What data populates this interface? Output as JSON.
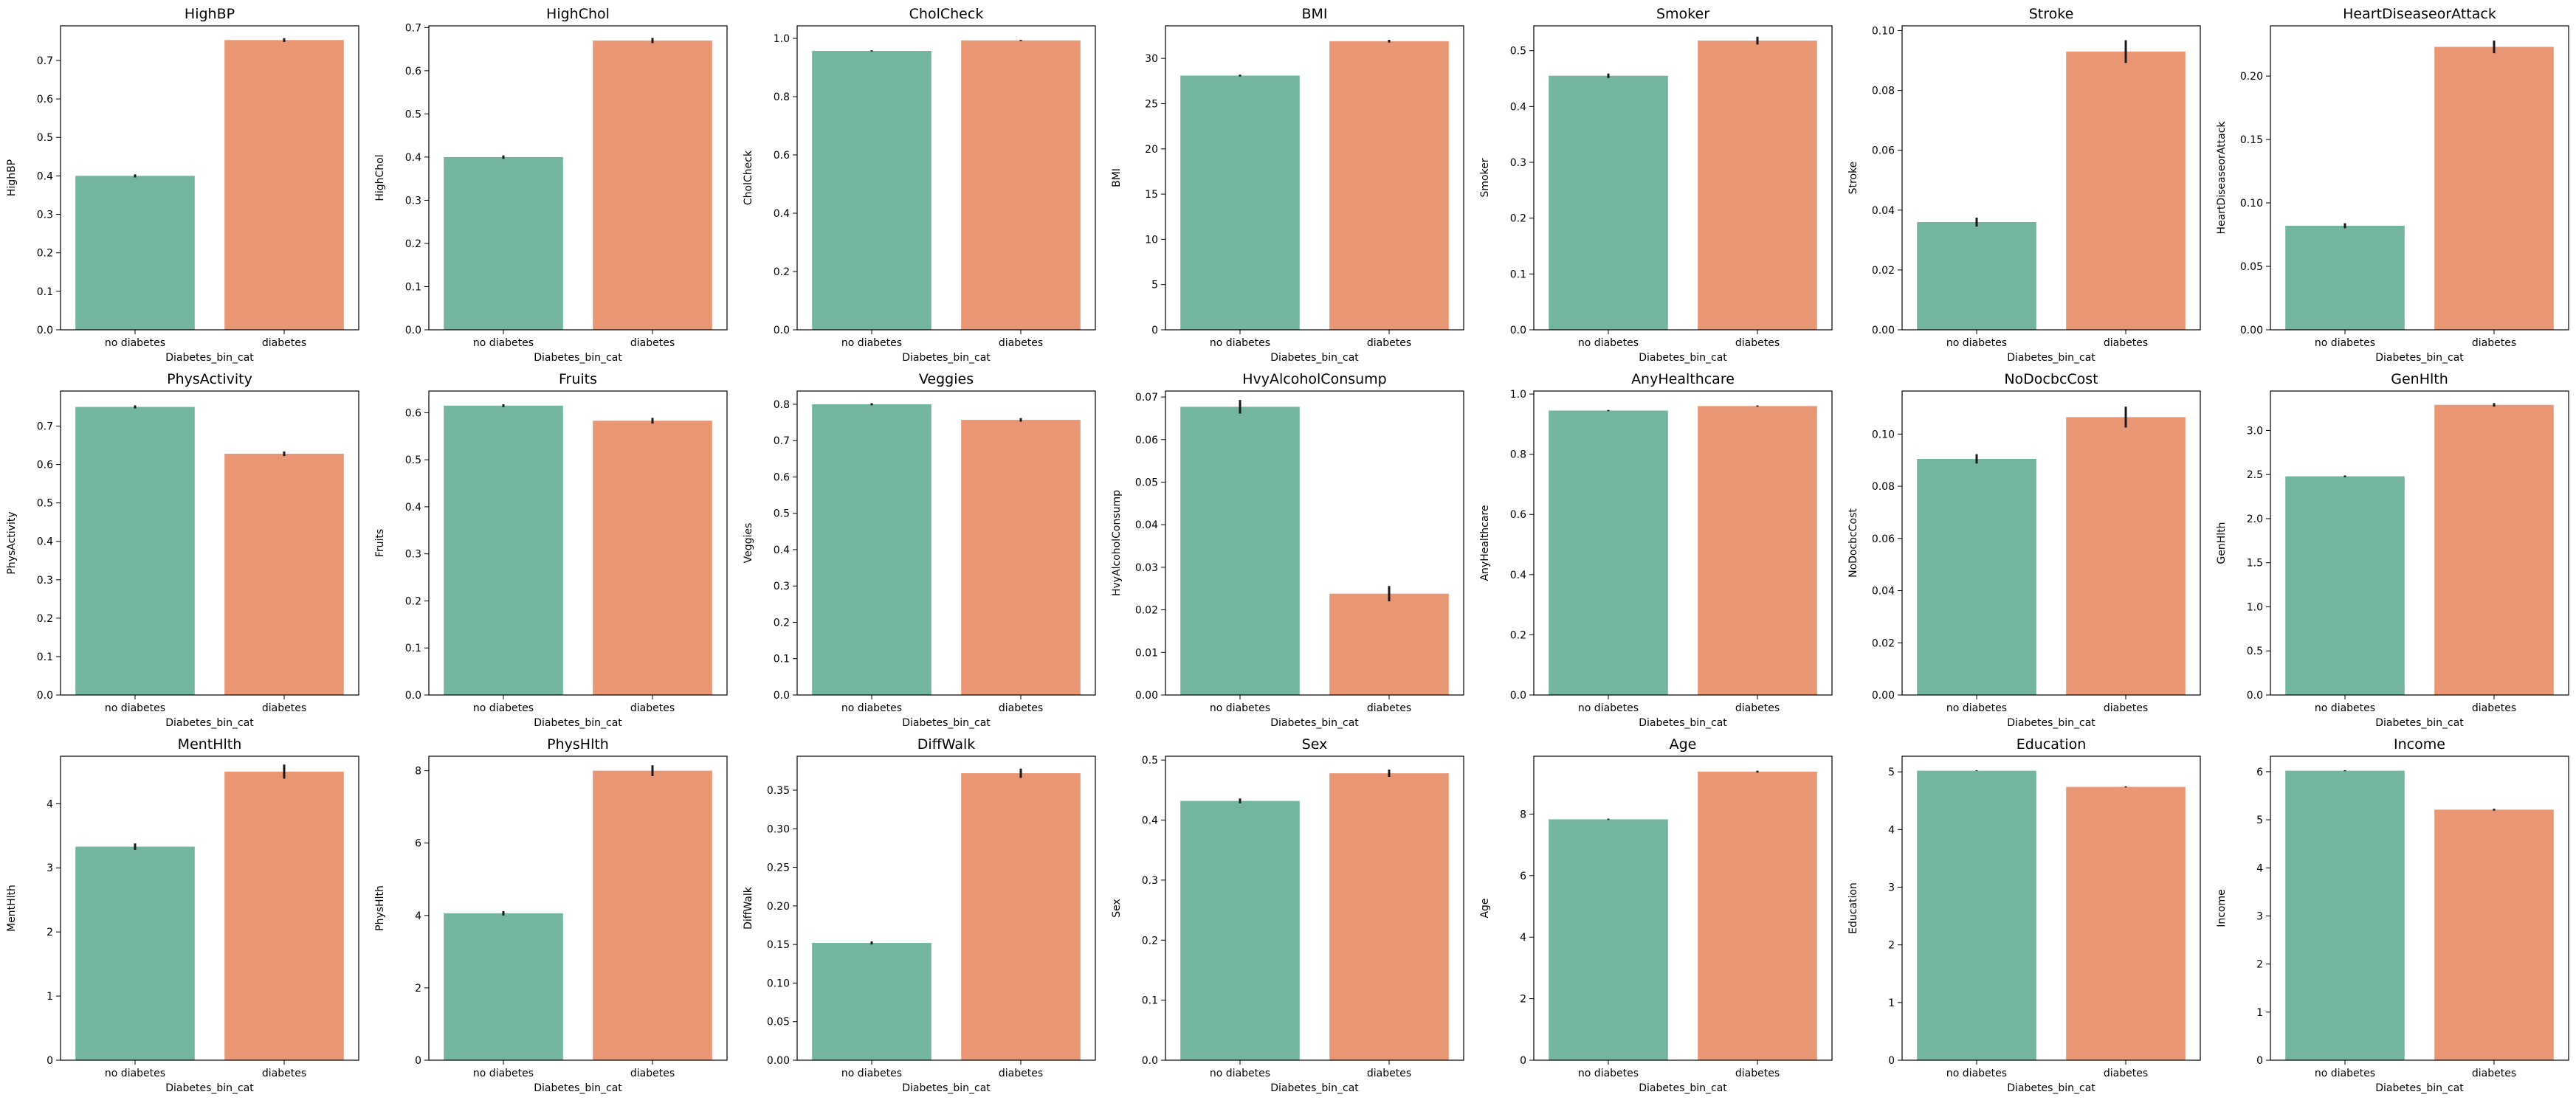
{
  "colors": {
    "no_diabetes": "#73b59f",
    "diabetes": "#e89673"
  },
  "chart_data": [
    {
      "type": "bar",
      "title": "HighBP",
      "xlabel": "Diabetes_bin_cat",
      "ylabel": "HighBP",
      "categories": [
        "no diabetes",
        "diabetes"
      ],
      "values": [
        0.4,
        0.753
      ],
      "errors": [
        0.004,
        0.005
      ],
      "ylim": [
        0,
        0.79
      ],
      "yticks": [
        0.0,
        0.1,
        0.2,
        0.3,
        0.4,
        0.5,
        0.6,
        0.7
      ],
      "ytick_labels": [
        "0.0",
        "0.1",
        "0.2",
        "0.3",
        "0.4",
        "0.5",
        "0.6",
        "0.7"
      ]
    },
    {
      "type": "bar",
      "title": "HighChol",
      "xlabel": "Diabetes_bin_cat",
      "ylabel": "HighChol",
      "categories": [
        "no diabetes",
        "diabetes"
      ],
      "values": [
        0.4,
        0.67
      ],
      "errors": [
        0.004,
        0.006
      ],
      "ylim": [
        0,
        0.704
      ],
      "yticks": [
        0.0,
        0.1,
        0.2,
        0.3,
        0.4,
        0.5,
        0.6,
        0.7
      ],
      "ytick_labels": [
        "0.0",
        "0.1",
        "0.2",
        "0.3",
        "0.4",
        "0.5",
        "0.6",
        "0.7"
      ]
    },
    {
      "type": "bar",
      "title": "CholCheck",
      "xlabel": "Diabetes_bin_cat",
      "ylabel": "CholCheck",
      "categories": [
        "no diabetes",
        "diabetes"
      ],
      "values": [
        0.957,
        0.993
      ],
      "errors": [
        0.002,
        0.002
      ],
      "ylim": [
        0,
        1.043
      ],
      "yticks": [
        0.0,
        0.2,
        0.4,
        0.6,
        0.8,
        1.0
      ],
      "ytick_labels": [
        "0.0",
        "0.2",
        "0.4",
        "0.6",
        "0.8",
        "1.0"
      ]
    },
    {
      "type": "bar",
      "title": "BMI",
      "xlabel": "Diabetes_bin_cat",
      "ylabel": "BMI",
      "categories": [
        "no diabetes",
        "diabetes"
      ],
      "values": [
        28.1,
        31.9
      ],
      "errors": [
        0.1,
        0.15
      ],
      "ylim": [
        0,
        33.6
      ],
      "yticks": [
        0,
        5,
        10,
        15,
        20,
        25,
        30
      ],
      "ytick_labels": [
        "0",
        "5",
        "10",
        "15",
        "20",
        "25",
        "30"
      ]
    },
    {
      "type": "bar",
      "title": "Smoker",
      "xlabel": "Diabetes_bin_cat",
      "ylabel": "Smoker",
      "categories": [
        "no diabetes",
        "diabetes"
      ],
      "values": [
        0.455,
        0.518
      ],
      "errors": [
        0.004,
        0.007
      ],
      "ylim": [
        0,
        0.5445
      ],
      "yticks": [
        0.0,
        0.1,
        0.2,
        0.3,
        0.4,
        0.5
      ],
      "ytick_labels": [
        "0.0",
        "0.1",
        "0.2",
        "0.3",
        "0.4",
        "0.5"
      ]
    },
    {
      "type": "bar",
      "title": "Stroke",
      "xlabel": "Diabetes_bin_cat",
      "ylabel": "Stroke",
      "categories": [
        "no diabetes",
        "diabetes"
      ],
      "values": [
        0.036,
        0.093
      ],
      "errors": [
        0.0015,
        0.0038
      ],
      "ylim": [
        0,
        0.1016
      ],
      "yticks": [
        0.0,
        0.02,
        0.04,
        0.06,
        0.08,
        0.1
      ],
      "ytick_labels": [
        "0.00",
        "0.02",
        "0.04",
        "0.06",
        "0.08",
        "0.10"
      ]
    },
    {
      "type": "bar",
      "title": "HeartDiseaseorAttack",
      "xlabel": "Diabetes_bin_cat",
      "ylabel": "HeartDiseaseorAttack",
      "categories": [
        "no diabetes",
        "diabetes"
      ],
      "values": [
        0.082,
        0.223
      ],
      "errors": [
        0.002,
        0.005
      ],
      "ylim": [
        0,
        0.2396
      ],
      "yticks": [
        0.0,
        0.05,
        0.1,
        0.15,
        0.2
      ],
      "ytick_labels": [
        "0.00",
        "0.05",
        "0.10",
        "0.15",
        "0.20"
      ]
    },
    {
      "type": "bar",
      "title": "PhysActivity",
      "xlabel": "Diabetes_bin_cat",
      "ylabel": "PhysActivity",
      "categories": [
        "no diabetes",
        "diabetes"
      ],
      "values": [
        0.75,
        0.628
      ],
      "errors": [
        0.004,
        0.006
      ],
      "ylim": [
        0,
        0.7913
      ],
      "yticks": [
        0.0,
        0.1,
        0.2,
        0.3,
        0.4,
        0.5,
        0.6,
        0.7
      ],
      "ytick_labels": [
        "0.0",
        "0.1",
        "0.2",
        "0.3",
        "0.4",
        "0.5",
        "0.6",
        "0.7"
      ]
    },
    {
      "type": "bar",
      "title": "Fruits",
      "xlabel": "Diabetes_bin_cat",
      "ylabel": "Fruits",
      "categories": [
        "no diabetes",
        "diabetes"
      ],
      "values": [
        0.615,
        0.583
      ],
      "errors": [
        0.003,
        0.006
      ],
      "ylim": [
        0,
        0.6461
      ],
      "yticks": [
        0.0,
        0.1,
        0.2,
        0.3,
        0.4,
        0.5,
        0.6
      ],
      "ytick_labels": [
        "0.0",
        "0.1",
        "0.2",
        "0.3",
        "0.4",
        "0.5",
        "0.6"
      ]
    },
    {
      "type": "bar",
      "title": "Veggies",
      "xlabel": "Diabetes_bin_cat",
      "ylabel": "Veggies",
      "categories": [
        "no diabetes",
        "diabetes"
      ],
      "values": [
        0.8,
        0.757
      ],
      "errors": [
        0.003,
        0.005
      ],
      "ylim": [
        0,
        0.8364
      ],
      "yticks": [
        0.0,
        0.1,
        0.2,
        0.3,
        0.4,
        0.5,
        0.6,
        0.7,
        0.8
      ],
      "ytick_labels": [
        "0.0",
        "0.1",
        "0.2",
        "0.3",
        "0.4",
        "0.5",
        "0.6",
        "0.7",
        "0.8"
      ]
    },
    {
      "type": "bar",
      "title": "HvyAlcoholConsump",
      "xlabel": "Diabetes_bin_cat",
      "ylabel": "HvyAlcoholConsump",
      "categories": [
        "no diabetes",
        "diabetes"
      ],
      "values": [
        0.0677,
        0.0238
      ],
      "errors": [
        0.0016,
        0.0018
      ],
      "ylim": [
        0,
        0.0714
      ],
      "yticks": [
        0.0,
        0.01,
        0.02,
        0.03,
        0.04,
        0.05,
        0.06,
        0.07
      ],
      "ytick_labels": [
        "0.00",
        "0.01",
        "0.02",
        "0.03",
        "0.04",
        "0.05",
        "0.06",
        "0.07"
      ]
    },
    {
      "type": "bar",
      "title": "AnyHealthcare",
      "xlabel": "Diabetes_bin_cat",
      "ylabel": "AnyHealthcare",
      "categories": [
        "no diabetes",
        "diabetes"
      ],
      "values": [
        0.945,
        0.96
      ],
      "errors": [
        0.002,
        0.002
      ],
      "ylim": [
        0,
        1.01
      ],
      "yticks": [
        0.0,
        0.2,
        0.4,
        0.6,
        0.8,
        1.0
      ],
      "ytick_labels": [
        "0.0",
        "0.2",
        "0.4",
        "0.6",
        "0.8",
        "1.0"
      ]
    },
    {
      "type": "bar",
      "title": "NoDocbcCost",
      "xlabel": "Diabetes_bin_cat",
      "ylabel": "NoDocbcCost",
      "categories": [
        "no diabetes",
        "diabetes"
      ],
      "values": [
        0.0905,
        0.1065
      ],
      "errors": [
        0.0018,
        0.004
      ],
      "ylim": [
        0,
        0.1165
      ],
      "yticks": [
        0.0,
        0.02,
        0.04,
        0.06,
        0.08,
        0.1
      ],
      "ytick_labels": [
        "0.00",
        "0.02",
        "0.04",
        "0.06",
        "0.08",
        "0.10"
      ]
    },
    {
      "type": "bar",
      "title": "GenHlth",
      "xlabel": "Diabetes_bin_cat",
      "ylabel": "GenHlth",
      "categories": [
        "no diabetes",
        "diabetes"
      ],
      "values": [
        2.48,
        3.29
      ],
      "errors": [
        0.01,
        0.02
      ],
      "ylim": [
        0,
        3.447
      ],
      "yticks": [
        0.0,
        0.5,
        1.0,
        1.5,
        2.0,
        2.5,
        3.0
      ],
      "ytick_labels": [
        "0.0",
        "0.5",
        "1.0",
        "1.5",
        "2.0",
        "2.5",
        "3.0"
      ]
    },
    {
      "type": "bar",
      "title": "MentHlth",
      "xlabel": "Diabetes_bin_cat",
      "ylabel": "MentHlth",
      "categories": [
        "no diabetes",
        "diabetes"
      ],
      "values": [
        3.33,
        4.5
      ],
      "errors": [
        0.05,
        0.11
      ],
      "ylim": [
        0,
        4.74
      ],
      "yticks": [
        0,
        1,
        2,
        3,
        4
      ],
      "ytick_labels": [
        "0",
        "1",
        "2",
        "3",
        "4"
      ]
    },
    {
      "type": "bar",
      "title": "PhysHlth",
      "xlabel": "Diabetes_bin_cat",
      "ylabel": "PhysHlth",
      "categories": [
        "no diabetes",
        "diabetes"
      ],
      "values": [
        4.06,
        8.0
      ],
      "errors": [
        0.06,
        0.15
      ],
      "ylim": [
        0,
        8.4
      ],
      "yticks": [
        0,
        2,
        4,
        6,
        8
      ],
      "ytick_labels": [
        "0",
        "2",
        "4",
        "6",
        "8"
      ]
    },
    {
      "type": "bar",
      "title": "DiffWalk",
      "xlabel": "Diabetes_bin_cat",
      "ylabel": "DiffWalk",
      "categories": [
        "no diabetes",
        "diabetes"
      ],
      "values": [
        0.152,
        0.372
      ],
      "errors": [
        0.002,
        0.006
      ],
      "ylim": [
        0,
        0.394
      ],
      "yticks": [
        0.0,
        0.05,
        0.1,
        0.15,
        0.2,
        0.25,
        0.3,
        0.35
      ],
      "ytick_labels": [
        "0.00",
        "0.05",
        "0.10",
        "0.15",
        "0.20",
        "0.25",
        "0.30",
        "0.35"
      ]
    },
    {
      "type": "bar",
      "title": "Sex",
      "xlabel": "Diabetes_bin_cat",
      "ylabel": "Sex",
      "categories": [
        "no diabetes",
        "diabetes"
      ],
      "values": [
        0.432,
        0.478
      ],
      "errors": [
        0.004,
        0.006
      ],
      "ylim": [
        0,
        0.5064
      ],
      "yticks": [
        0.0,
        0.1,
        0.2,
        0.3,
        0.4,
        0.5
      ],
      "ytick_labels": [
        "0.0",
        "0.1",
        "0.2",
        "0.3",
        "0.4",
        "0.5"
      ]
    },
    {
      "type": "bar",
      "title": "Age",
      "xlabel": "Diabetes_bin_cat",
      "ylabel": "Age",
      "categories": [
        "no diabetes",
        "diabetes"
      ],
      "values": [
        7.83,
        9.38
      ],
      "errors": [
        0.02,
        0.03
      ],
      "ylim": [
        0,
        9.88
      ],
      "yticks": [
        0,
        2,
        4,
        6,
        8
      ],
      "ytick_labels": [
        "0",
        "2",
        "4",
        "6",
        "8"
      ]
    },
    {
      "type": "bar",
      "title": "Education",
      "xlabel": "Diabetes_bin_cat",
      "ylabel": "Education",
      "categories": [
        "no diabetes",
        "diabetes"
      ],
      "values": [
        5.02,
        4.74
      ],
      "errors": [
        0.006,
        0.01
      ],
      "ylim": [
        0,
        5.271
      ],
      "yticks": [
        0,
        1,
        2,
        3,
        4,
        5
      ],
      "ytick_labels": [
        "0",
        "1",
        "2",
        "3",
        "4",
        "5"
      ]
    },
    {
      "type": "bar",
      "title": "Income",
      "xlabel": "Diabetes_bin_cat",
      "ylabel": "Income",
      "categories": [
        "no diabetes",
        "diabetes"
      ],
      "values": [
        6.02,
        5.21
      ],
      "errors": [
        0.01,
        0.02
      ],
      "ylim": [
        0,
        6.321
      ],
      "yticks": [
        0,
        1,
        2,
        3,
        4,
        5,
        6
      ],
      "ytick_labels": [
        "0",
        "1",
        "2",
        "3",
        "4",
        "5",
        "6"
      ]
    }
  ]
}
